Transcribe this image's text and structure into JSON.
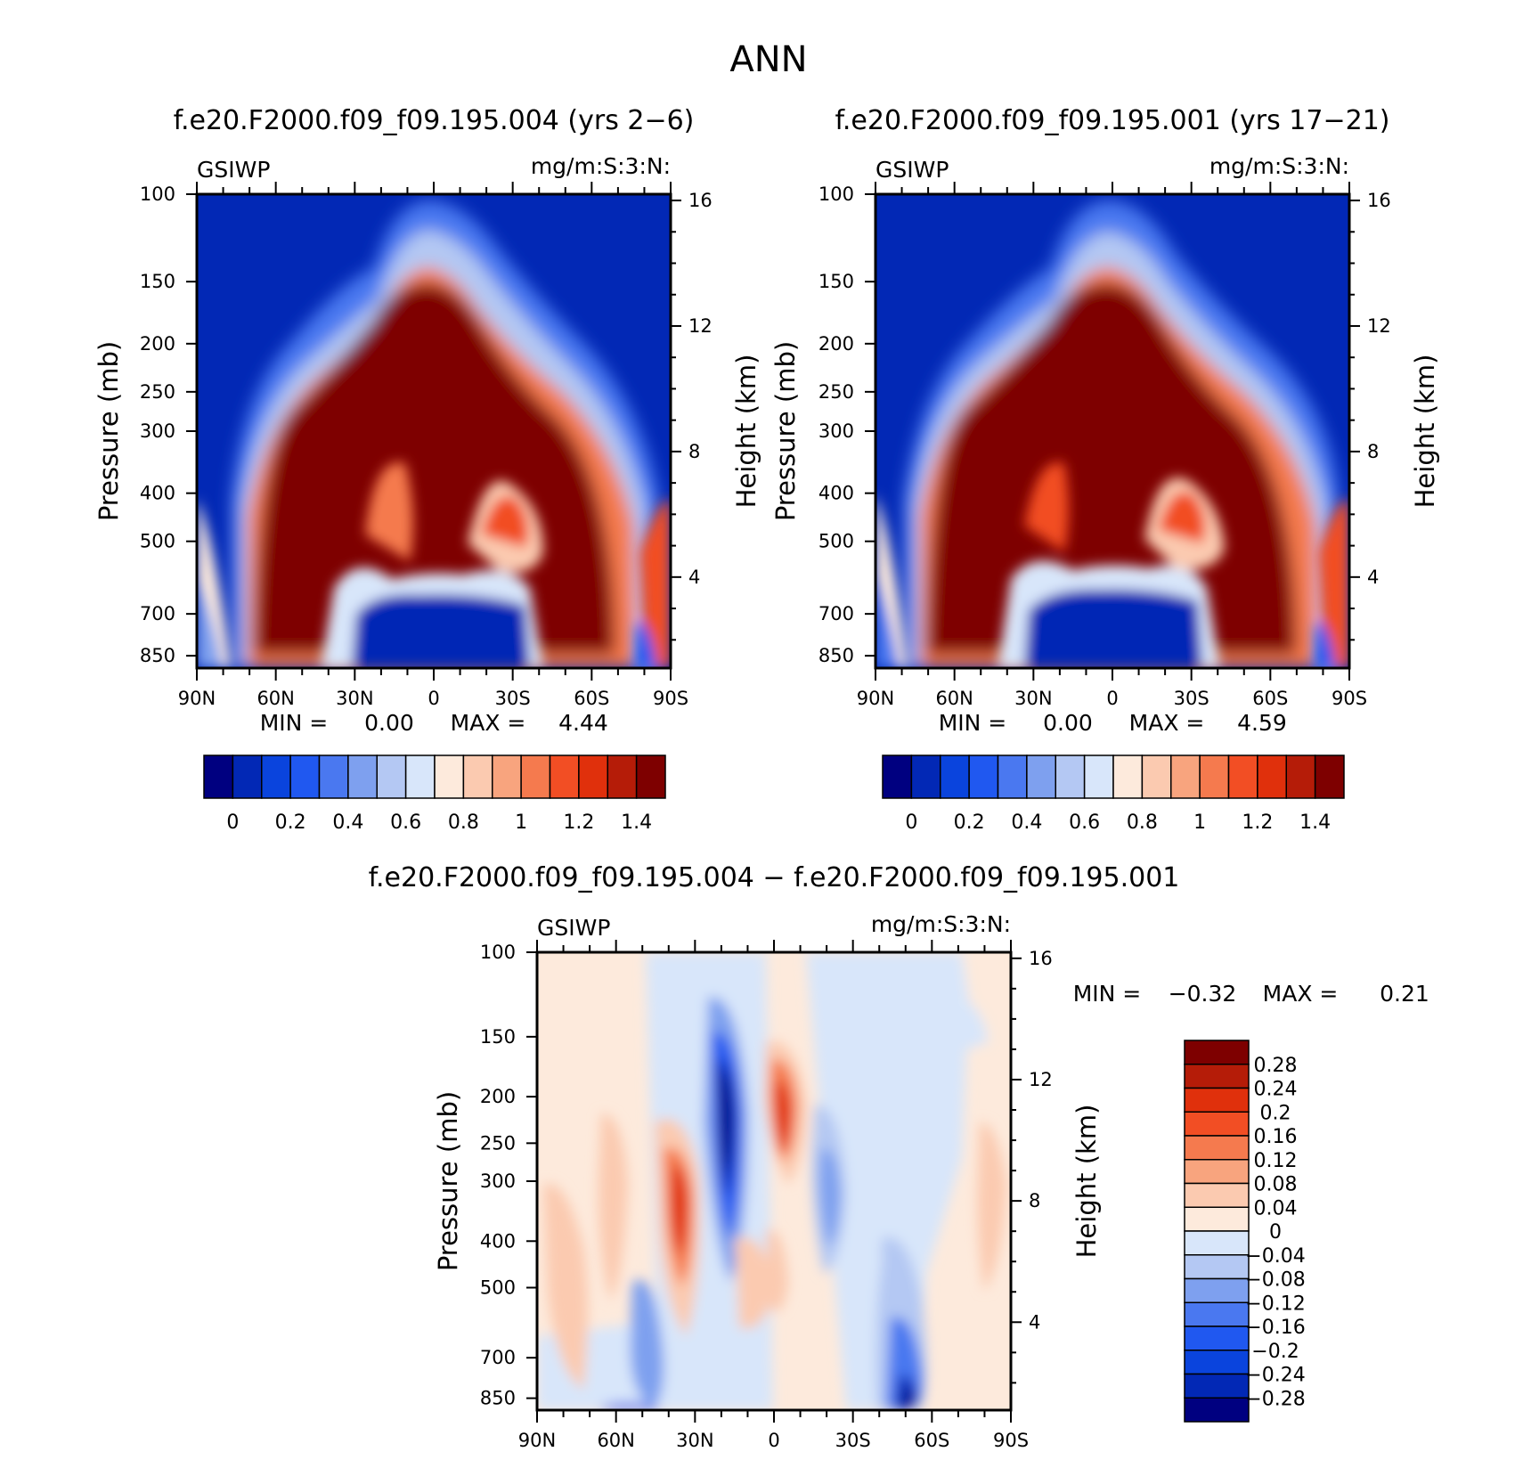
{
  "main_title": "ANN",
  "chart_data": [
    {
      "type": "heatmap",
      "title": "f.e20.F2000.f09_f09.195.004 (yrs 2−6)",
      "variable": "GSIWP",
      "units": "mg/m:S:3:N:",
      "ylabel": "Pressure (mb)",
      "ylabel_right": "Height (km)",
      "x_ticks": [
        "90N",
        "60N",
        "30N",
        "0",
        "30S",
        "60S",
        "90S"
      ],
      "x_values": [
        90,
        60,
        30,
        0,
        -30,
        -60,
        -90
      ],
      "y_ticks": [
        100,
        150,
        200,
        250,
        300,
        400,
        500,
        700,
        850
      ],
      "y_right_ticks": [
        16,
        12,
        8,
        4
      ],
      "log_pressure_axis": true,
      "min_label": "MIN =",
      "min_value": "0.00",
      "max_label": "MAX =",
      "max_value": "4.44",
      "colorbar_labels": [
        "0",
        "0.2",
        "0.4",
        "0.6",
        "0.8",
        "1",
        "1.2",
        "1.4"
      ],
      "colorbar_colors": [
        "#000080",
        "#0228b5",
        "#0a44dd",
        "#2058f0",
        "#4a78f0",
        "#7ea0ef",
        "#b4c8f3",
        "#d8e6fa",
        "#fdeadc",
        "#fbcab0",
        "#f8a47e",
        "#f57a4e",
        "#f24e24",
        "#e0300c",
        "#b51c08",
        "#7e0000"
      ]
    },
    {
      "type": "heatmap",
      "title": "f.e20.F2000.f09_f09.195.001 (yrs 17−21)",
      "variable": "GSIWP",
      "units": "mg/m:S:3:N:",
      "ylabel": "Pressure (mb)",
      "ylabel_right": "Height (km)",
      "x_ticks": [
        "90N",
        "60N",
        "30N",
        "0",
        "30S",
        "60S",
        "90S"
      ],
      "x_values": [
        90,
        60,
        30,
        0,
        -30,
        -60,
        -90
      ],
      "y_ticks": [
        100,
        150,
        200,
        250,
        300,
        400,
        500,
        700,
        850
      ],
      "y_right_ticks": [
        16,
        12,
        8,
        4
      ],
      "log_pressure_axis": true,
      "min_label": "MIN =",
      "min_value": "0.00",
      "max_label": "MAX =",
      "max_value": "4.59",
      "colorbar_labels": [
        "0",
        "0.2",
        "0.4",
        "0.6",
        "0.8",
        "1",
        "1.2",
        "1.4"
      ],
      "colorbar_colors": [
        "#000080",
        "#0228b5",
        "#0a44dd",
        "#2058f0",
        "#4a78f0",
        "#7ea0ef",
        "#b4c8f3",
        "#d8e6fa",
        "#fdeadc",
        "#fbcab0",
        "#f8a47e",
        "#f57a4e",
        "#f24e24",
        "#e0300c",
        "#b51c08",
        "#7e0000"
      ]
    },
    {
      "type": "heatmap",
      "title": "f.e20.F2000.f09_f09.195.004 − f.e20.F2000.f09_f09.195.001",
      "variable": "GSIWP",
      "units": "mg/m:S:3:N:",
      "ylabel": "Pressure (mb)",
      "ylabel_right": "Height (km)",
      "x_ticks": [
        "90N",
        "60N",
        "30N",
        "0",
        "30S",
        "60S",
        "90S"
      ],
      "x_values": [
        90,
        60,
        30,
        0,
        -30,
        -60,
        -90
      ],
      "y_ticks": [
        100,
        150,
        200,
        250,
        300,
        400,
        500,
        700,
        850
      ],
      "y_right_ticks": [
        16,
        12,
        8,
        4
      ],
      "log_pressure_axis": true,
      "min_label": "MIN =",
      "min_value": "−0.32",
      "max_label": "MAX =",
      "max_value": "0.21",
      "colorbar_labels": [
        "0.28",
        "0.24",
        "0.2",
        "0.16",
        "0.12",
        "0.08",
        "0.04",
        "0",
        "−0.04",
        "−0.08",
        "−0.12",
        "−0.16",
        "−0.2",
        "−0.24",
        "−0.28"
      ],
      "colorbar_colors": [
        "#7e0000",
        "#b51c08",
        "#e0300c",
        "#f24e24",
        "#f57a4e",
        "#f8a47e",
        "#fbcab0",
        "#fdeadc",
        "#d8e6fa",
        "#b4c8f3",
        "#7ea0ef",
        "#4a78f0",
        "#2058f0",
        "#0a44dd",
        "#0228b5",
        "#000080"
      ]
    }
  ]
}
